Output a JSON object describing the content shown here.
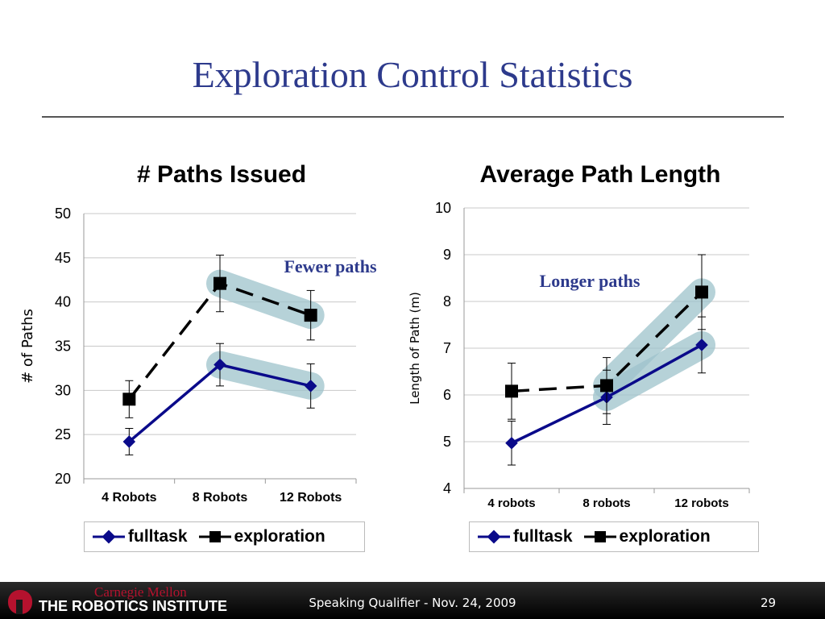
{
  "slide": {
    "title": "Exploration Control Statistics",
    "footer_text": "Speaking Qualifier - Nov. 24, 2009",
    "page_number": "29",
    "logo_top": "Carnegie Mellon",
    "logo_bottom": "THE ROBOTICS INSTITUTE",
    "colors": {
      "title": "#2d3a8c",
      "fulltask": "#0a0a8a",
      "exploration": "#000000",
      "highlight": "#9ec3cc",
      "annotation": "#2d3a8c",
      "logo_red": "#b5122e"
    }
  },
  "chart_data": [
    {
      "type": "line",
      "title": "# Paths Issued",
      "xlabel": "",
      "ylabel": "# of Paths",
      "categories": [
        "4 Robots",
        "8 Robots",
        "12 Robots"
      ],
      "ylim": [
        20,
        50
      ],
      "yticks": [
        "20",
        "25",
        "30",
        "35",
        "40",
        "45",
        "50"
      ],
      "grid": true,
      "legend": "bottom",
      "annotation": "Fewer paths",
      "series": [
        {
          "name": "fulltask",
          "marker": "diamond",
          "dash": "solid",
          "values": [
            24.2,
            32.9,
            30.5
          ],
          "err": [
            1.5,
            2.4,
            2.5
          ]
        },
        {
          "name": "exploration",
          "marker": "square",
          "dash": "dashed",
          "values": [
            29.0,
            42.1,
            38.5
          ],
          "err": [
            2.1,
            3.2,
            2.8
          ]
        }
      ]
    },
    {
      "type": "line",
      "title": "Average Path Length",
      "xlabel": "",
      "ylabel": "Length of Path (m)",
      "categories": [
        "4 robots",
        "8 robots",
        "12 robots"
      ],
      "ylim": [
        4,
        10
      ],
      "yticks": [
        "4",
        "5",
        "6",
        "7",
        "8",
        "9",
        "10"
      ],
      "grid": true,
      "legend": "bottom",
      "annotation": "Longer paths",
      "series": [
        {
          "name": "fulltask",
          "marker": "diamond",
          "dash": "solid",
          "values": [
            4.97,
            5.95,
            7.07
          ],
          "err": [
            0.47,
            0.58,
            0.6
          ]
        },
        {
          "name": "exploration",
          "marker": "square",
          "dash": "dashed",
          "values": [
            6.08,
            6.2,
            8.2
          ],
          "err": [
            0.6,
            0.6,
            0.8
          ]
        }
      ]
    }
  ]
}
